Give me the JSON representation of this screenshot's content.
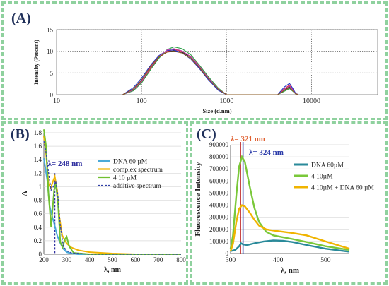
{
  "panels": {
    "a": {
      "label": "(A)"
    },
    "b": {
      "label": "(B)"
    },
    "c": {
      "label": "(C)"
    }
  },
  "chart_data": [
    {
      "panel": "A",
      "type": "line",
      "xlabel": "Size (d.nm)",
      "ylabel": "Intensity (Percent)",
      "xscale": "log",
      "xlim": [
        10,
        60000
      ],
      "ylim": [
        0,
        15
      ],
      "xticks": [
        10,
        100,
        1000,
        10000
      ],
      "yticks": [
        0,
        5,
        10,
        15
      ],
      "grid": "dotted",
      "colors": [
        "#2a2a2a",
        "#d9303a",
        "#2030c8",
        "#2ea04a",
        "#c040b0",
        "#8a5a20"
      ],
      "series": [
        {
          "x": [
            60,
            80,
            100,
            130,
            160,
            200,
            240,
            300,
            380,
            480,
            600,
            800,
            1000,
            4000,
            4800,
            5500,
            6000,
            6500,
            7000
          ],
          "y": [
            0,
            1.2,
            3.2,
            6.5,
            8.6,
            9.9,
            10.1,
            9.8,
            8.6,
            6.4,
            4.0,
            1.3,
            0,
            0,
            1.1,
            1.8,
            1.0,
            0.2,
            0
          ]
        },
        {
          "x": [
            60,
            80,
            100,
            130,
            160,
            200,
            240,
            300,
            380,
            480,
            600,
            800,
            1000,
            4000,
            4800,
            5500,
            6000,
            6500,
            7000
          ],
          "y": [
            0,
            1.0,
            3.0,
            6.3,
            8.5,
            10.0,
            10.4,
            10.0,
            8.8,
            6.6,
            4.2,
            1.4,
            0,
            0,
            1.4,
            2.2,
            1.2,
            0.3,
            0
          ]
        },
        {
          "x": [
            60,
            80,
            100,
            130,
            160,
            200,
            240,
            300,
            380,
            480,
            600,
            800,
            1000,
            4000,
            4800,
            5500,
            6000,
            6500,
            7000
          ],
          "y": [
            0,
            1.6,
            3.8,
            7.0,
            9.0,
            10.2,
            10.3,
            9.6,
            8.2,
            6.0,
            3.6,
            1.0,
            0,
            0,
            1.8,
            2.6,
            1.5,
            0.3,
            0
          ]
        },
        {
          "x": [
            60,
            80,
            100,
            130,
            160,
            200,
            240,
            300,
            380,
            480,
            600,
            800,
            1000,
            4000,
            4800,
            5500,
            6000,
            6500,
            7000
          ],
          "y": [
            0,
            0.9,
            2.7,
            6.0,
            8.4,
            10.4,
            11.0,
            10.6,
            9.2,
            6.8,
            4.3,
            1.5,
            0,
            0,
            0.8,
            1.4,
            0.8,
            0.2,
            0
          ]
        },
        {
          "x": [
            60,
            80,
            100,
            130,
            160,
            200,
            240,
            300,
            380,
            480,
            600,
            800,
            1000,
            4000,
            4800,
            5500,
            6000,
            6500,
            7000
          ],
          "y": [
            0,
            1.1,
            3.1,
            6.6,
            8.8,
            10.3,
            10.6,
            10.1,
            8.7,
            6.5,
            4.0,
            1.3,
            0,
            0,
            1.2,
            2.0,
            1.1,
            0.2,
            0
          ]
        },
        {
          "x": [
            60,
            80,
            100,
            130,
            160,
            200,
            240,
            300,
            380,
            480,
            600,
            800,
            1000,
            4000,
            4800,
            5500,
            6000,
            6500,
            7000
          ],
          "y": [
            0,
            1.3,
            3.4,
            6.8,
            8.7,
            9.8,
            10.0,
            9.6,
            8.3,
            6.2,
            3.8,
            1.2,
            0,
            0,
            1.0,
            1.6,
            0.9,
            0.2,
            0
          ]
        }
      ]
    },
    {
      "panel": "B",
      "type": "line",
      "xlabel": "λ, nm",
      "ylabel": "A",
      "xlim": [
        200,
        800
      ],
      "ylim": [
        0,
        1.8
      ],
      "xticks": [
        200,
        300,
        400,
        500,
        600,
        700,
        800
      ],
      "yticks": [
        0,
        0.2,
        0.4,
        0.6,
        0.8,
        1.0,
        1.2,
        1.4,
        1.6,
        1.8
      ],
      "legend_position": "top-right",
      "annotation": {
        "text": "λ= 248 nm",
        "x": 248,
        "color": "#3030a0"
      },
      "series": [
        {
          "name": "DNA 60 µM",
          "color": "#4aaad8",
          "dash": false,
          "x": [
            200,
            215,
            225,
            235,
            248,
            258,
            270,
            285,
            300,
            320,
            350,
            400,
            500,
            800
          ],
          "y": [
            1.42,
            1.1,
            0.72,
            0.58,
            0.42,
            0.28,
            0.18,
            0.08,
            0.03,
            0.01,
            0.0,
            0.0,
            0.0,
            0.0
          ]
        },
        {
          "name": "complex spectrum",
          "color": "#f0b400",
          "dash": false,
          "x": [
            200,
            210,
            220,
            230,
            240,
            248,
            258,
            268,
            280,
            300,
            320,
            350,
            400,
            500,
            600,
            800
          ],
          "y": [
            1.75,
            1.48,
            1.05,
            0.98,
            1.08,
            1.15,
            0.95,
            0.55,
            0.28,
            0.16,
            0.1,
            0.06,
            0.03,
            0.01,
            0.0,
            0.0
          ]
        },
        {
          "name": "4 10 µM",
          "color": "#70c030",
          "dash": false,
          "x": [
            200,
            210,
            220,
            232,
            245,
            252,
            262,
            272,
            282,
            292,
            300,
            310,
            330,
            400,
            800
          ],
          "y": [
            1.85,
            1.6,
            0.9,
            0.4,
            0.95,
            1.05,
            0.75,
            0.18,
            0.1,
            0.22,
            0.26,
            0.12,
            0.02,
            0.0,
            0.0
          ]
        },
        {
          "name": "additive spectrum",
          "color": "#3040a8",
          "dash": true,
          "x": [
            200,
            210,
            220,
            232,
            245,
            252,
            262,
            272,
            285,
            300,
            320,
            400,
            800
          ],
          "y": [
            1.68,
            1.5,
            1.22,
            0.95,
            1.02,
            1.08,
            0.85,
            0.42,
            0.12,
            0.05,
            0.02,
            0.0,
            0.0
          ]
        }
      ]
    },
    {
      "panel": "C",
      "type": "line",
      "xlabel": "λ, nm",
      "ylabel": "Fluorescence Intensity",
      "xlim": [
        300,
        550
      ],
      "ylim": [
        0,
        900000
      ],
      "xticks": [
        300,
        400,
        500
      ],
      "yticks": [
        0,
        100000,
        200000,
        300000,
        400000,
        500000,
        600000,
        700000,
        800000,
        900000
      ],
      "legend_position": "right",
      "annotations": [
        {
          "text": "λ= 321 nm",
          "x": 321,
          "color": "#e06030"
        },
        {
          "text": "λ= 324 nm",
          "x": 324,
          "color": "#2a3aa8"
        }
      ],
      "series": [
        {
          "name": "DNA 60µM",
          "color": "#2a8a9a",
          "dash": false,
          "x": [
            300,
            310,
            318,
            322,
            327,
            335,
            350,
            370,
            390,
            410,
            430,
            460,
            500,
            550
          ],
          "y": [
            20000,
            30000,
            60000,
            85000,
            75000,
            70000,
            85000,
            100000,
            108000,
            106000,
            95000,
            70000,
            40000,
            15000
          ]
        },
        {
          "name": "4 10µM",
          "color": "#7ac83a",
          "dash": false,
          "x": [
            300,
            305,
            312,
            318,
            324,
            330,
            340,
            350,
            360,
            375,
            390,
            410,
            430,
            460,
            500,
            550
          ],
          "y": [
            40000,
            150000,
            480000,
            720000,
            800000,
            760000,
            560000,
            380000,
            260000,
            180000,
            150000,
            135000,
            120000,
            95000,
            60000,
            30000
          ]
        },
        {
          "name": "4 10µM + DNA 60 µM",
          "color": "#f0b400",
          "dash": false,
          "x": [
            300,
            305,
            312,
            318,
            324,
            330,
            340,
            350,
            360,
            375,
            390,
            410,
            430,
            460,
            500,
            550
          ],
          "y": [
            20000,
            80000,
            260000,
            370000,
            400000,
            390000,
            340000,
            280000,
            230000,
            200000,
            190000,
            180000,
            170000,
            150000,
            100000,
            40000
          ]
        }
      ]
    }
  ]
}
